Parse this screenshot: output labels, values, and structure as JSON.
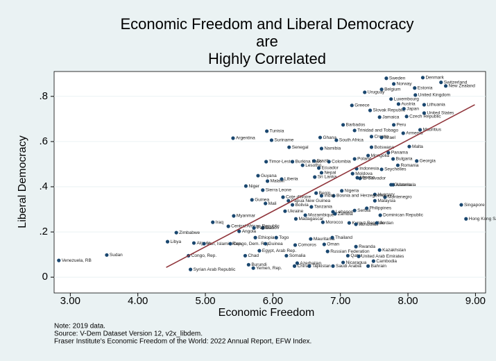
{
  "chart_data": {
    "type": "scatter",
    "title_lines": [
      "Economic Freedom and Liberal Democracy",
      "are",
      "Highly Correlated"
    ],
    "x_label": "Economic Freedom",
    "y_label": "Liberal Democracy",
    "notes": [
      "Note: 2019 data.",
      "Source: V-Dem Dataset Version 12, v2x_libdem.",
      "Fraser Institute's Economic Freedom of the World: 2022 Annual Report, EFW Index."
    ],
    "xlim": [
      2.76,
      9.15
    ],
    "ylim": [
      -0.07,
      0.91
    ],
    "xticks": [
      {
        "value": 3,
        "label": "3.00"
      },
      {
        "value": 4,
        "label": "4.00"
      },
      {
        "value": 5,
        "label": "5.00"
      },
      {
        "value": 6,
        "label": "6.00"
      },
      {
        "value": 7,
        "label": "7.00"
      },
      {
        "value": 8,
        "label": "8.00"
      },
      {
        "value": 9,
        "label": "9.00"
      }
    ],
    "yticks": [
      0,
      {
        "value": 0.2,
        "label": ".2"
      },
      {
        "value": 0.4,
        "label": ".4"
      },
      {
        "value": 0.6,
        "label": ".6"
      },
      {
        "value": 0.8,
        "label": ".8"
      }
    ],
    "grid": true,
    "color": "#1a476f",
    "labels": [
      "Venezuela, RB",
      "Sudan",
      "Syrian Arab Republic",
      "Congo, Rep.",
      "Libya",
      "Zimbabwe",
      "Algeria",
      "Iran, Islamic Rep.",
      "Argentina",
      "Tunisia",
      "Suriname",
      "Senegal",
      "Niger",
      "Guyana",
      "Malawi",
      "Liberia",
      "Timor-Leste",
      "Burkina Faso",
      "Sierra Leone",
      "Cote d'Ivoire",
      "Papua New Guinea",
      "Guinea",
      "Mali",
      "Bolivia",
      "Ukraine",
      "Myanmar",
      "Iraq",
      "Central African Republic",
      "Gabon",
      "Pakistan",
      "Angola",
      "Ethiopia",
      "Togo",
      "Congo, Dem. Rep.",
      "Guinea",
      "Chad",
      "Burundi",
      "Yemen, Rep.",
      "Somalia",
      "Comoros",
      "Egypt, Arab Rep.",
      "Mauritania",
      "Thailand",
      "Oman",
      "Russian Federation",
      "Qatar",
      "Azerbaijan",
      "China",
      "Tajikistan",
      "Saudi Arabia",
      "Nicaragua",
      "Bahrain",
      "Cambodia",
      "United Arab Emirates",
      "Rwanda",
      "Kazakhstan",
      "Morocco",
      "Kyrgyz Republic",
      "Honduras",
      "Jordan",
      "Lebanon",
      "Tanzania",
      "Mozambique",
      "Madagascar",
      "Zambia",
      "Serbia",
      "Philippines",
      "Dominican Republic",
      "Georgia",
      "Romania",
      "Bulgaria",
      "Poland",
      "Colombia",
      "Brazil",
      "Lesotho",
      "Ecuador",
      "Nepal",
      "Sri Lanka",
      "Indonesia",
      "Seychelles",
      "Moldova",
      "El Salvador",
      "Mexico",
      "Albania",
      "Guatemala",
      "Montenegro",
      "Hungary",
      "Bosnia and Herzegovina",
      "India",
      "Benin",
      "Nigeria",
      "Malaysia",
      "Armenia",
      "Mauritius",
      "Peru",
      "Malta",
      "Panama",
      "Mongolia",
      "Botswana",
      "Croatia",
      "Israel",
      "Trinidad and Tobago",
      "Barbados",
      "Jamaica",
      "Ghana",
      "South Africa",
      "Namibia",
      "Greece",
      "Slovak Republic",
      "Czech Republic",
      "United States",
      "Japan",
      "Lithuania",
      "Austria",
      "Uruguay",
      "Luxembourg",
      "Belgium",
      "Sweden",
      "Denmark",
      "Switzerland",
      "New Zealand",
      "Norway",
      "Estonia",
      "United Kingdom",
      "Singapore",
      "Hong Kong SAR, China"
    ],
    "x": [
      2.83,
      3.54,
      4.78,
      4.75,
      4.44,
      4.57,
      4.83,
      4.98,
      5.41,
      5.91,
      5.98,
      6.24,
      5.6,
      5.78,
      5.92,
      6.13,
      5.9,
      6.29,
      5.85,
      6.15,
      6.23,
      5.69,
      5.89,
      6.29,
      6.18,
      5.42,
      5.11,
      5.34,
      5.85,
      5.72,
      5.5,
      5.74,
      6.05,
      5.37,
      5.89,
      5.59,
      5.64,
      5.71,
      6.2,
      6.33,
      5.8,
      6.56,
      6.88,
      6.76,
      6.81,
      7.11,
      6.36,
      6.32,
      6.54,
      6.89,
      7.04,
      7.41,
      7.49,
      7.27,
      7.23,
      7.58,
      6.74,
      7.13,
      7.23,
      7.54,
      6.89,
      6.57,
      6.48,
      6.34,
      6.92,
      7.21,
      7.39,
      7.59,
      8.13,
      7.85,
      7.78,
      7.21,
      6.83,
      6.61,
      6.44,
      6.68,
      6.72,
      6.62,
      7.24,
      7.61,
      7.18,
      7.29,
      7.25,
      7.78,
      7.75,
      7.66,
      7.51,
      6.9,
      6.72,
      6.64,
      7.02,
      7.51,
      7.93,
      8.18,
      7.79,
      8.02,
      7.71,
      7.41,
      7.46,
      7.46,
      7.61,
      7.21,
      7.04,
      7.58,
      6.7,
      6.94,
      6.72,
      7.17,
      7.44,
      7.98,
      8.24,
      7.94,
      8.24,
      7.86,
      7.36,
      7.75,
      7.61,
      7.68,
      8.22,
      8.49,
      8.56,
      7.79,
      8.1,
      8.11,
      8.79,
      8.86
    ],
    "y": [
      0.074,
      0.098,
      0.034,
      0.095,
      0.157,
      0.197,
      0.151,
      0.148,
      0.615,
      0.646,
      0.606,
      0.575,
      0.403,
      0.449,
      0.425,
      0.434,
      0.511,
      0.511,
      0.385,
      0.354,
      0.338,
      0.342,
      0.326,
      0.32,
      0.292,
      0.271,
      0.243,
      0.225,
      0.218,
      0.218,
      0.203,
      0.175,
      0.175,
      0.148,
      0.148,
      0.095,
      0.055,
      0.04,
      0.095,
      0.142,
      0.117,
      0.169,
      0.175,
      0.145,
      0.114,
      0.095,
      0.062,
      0.049,
      0.049,
      0.049,
      0.065,
      0.049,
      0.071,
      0.092,
      0.135,
      0.12,
      0.243,
      0.24,
      0.234,
      0.24,
      0.289,
      0.311,
      0.274,
      0.258,
      0.28,
      0.295,
      0.305,
      0.274,
      0.514,
      0.495,
      0.523,
      0.523,
      0.511,
      0.514,
      0.495,
      0.483,
      0.462,
      0.443,
      0.48,
      0.477,
      0.458,
      0.437,
      0.44,
      0.409,
      0.409,
      0.354,
      0.366,
      0.36,
      0.36,
      0.372,
      0.382,
      0.338,
      0.637,
      0.652,
      0.674,
      0.578,
      0.551,
      0.538,
      0.575,
      0.622,
      0.618,
      0.649,
      0.674,
      0.708,
      0.618,
      0.606,
      0.569,
      0.76,
      0.738,
      0.711,
      0.726,
      0.745,
      0.763,
      0.766,
      0.818,
      0.788,
      0.831,
      0.88,
      0.883,
      0.862,
      0.846,
      0.855,
      0.837,
      0.806,
      0.32,
      0.258
    ],
    "fit": {
      "x": [
        4.42,
        8.99
      ],
      "y": [
        0.043,
        0.763
      ],
      "color": "#90353b"
    }
  }
}
